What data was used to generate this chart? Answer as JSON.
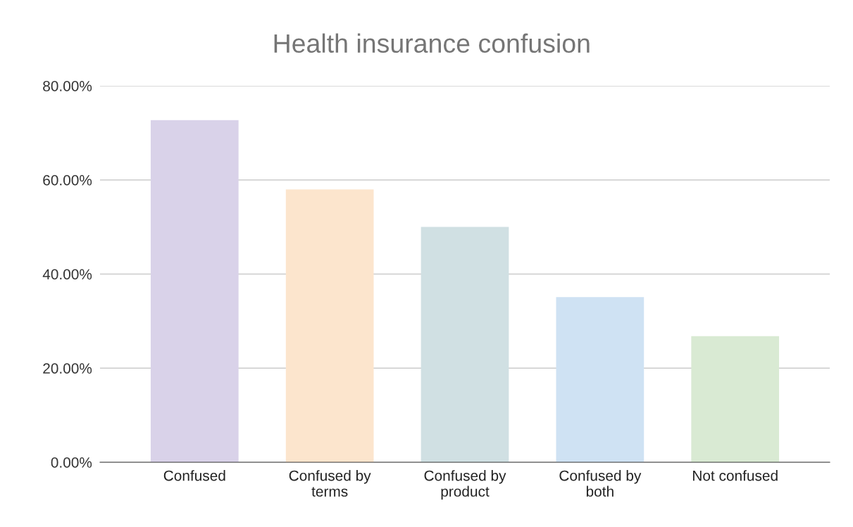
{
  "chart_data": {
    "type": "bar",
    "title": "Health insurance confusion",
    "categories": [
      "Confused",
      "Confused by\nterms",
      "Confused by\nproduct",
      "Confused by\nboth",
      "Not confused"
    ],
    "values": [
      72.7,
      58.0,
      50.0,
      35.1,
      26.8
    ],
    "colors": [
      "#d9d2e9",
      "#fce5cd",
      "#d0e0e3",
      "#cfe2f3",
      "#d9ead3"
    ],
    "ylim": [
      0,
      80
    ],
    "yticks": [
      {
        "value": 0,
        "label": "0.00%"
      },
      {
        "value": 20,
        "label": "20.00%"
      },
      {
        "value": 40,
        "label": "40.00%"
      },
      {
        "value": 60,
        "label": "60.00%"
      },
      {
        "value": 80,
        "label": "80.00%"
      }
    ],
    "grid": "y",
    "legend": false
  }
}
